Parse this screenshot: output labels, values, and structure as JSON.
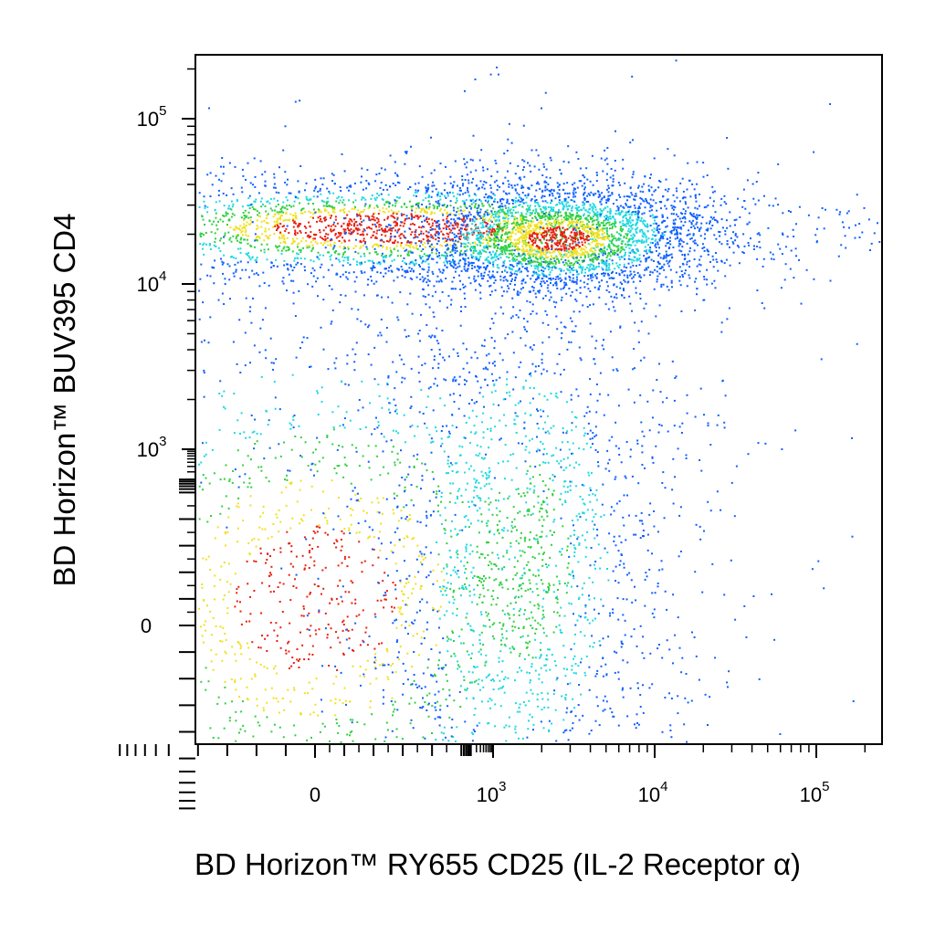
{
  "chart_data": {
    "type": "scatter",
    "title": "",
    "xlabel": "BD Horizon™ RY655 CD25 (IL-2 Receptor α)",
    "ylabel": "BD Horizon™ BUV395  CD4",
    "x_scale": "biexponential",
    "y_scale": "biexponential",
    "xlim": [
      -300,
      200000
    ],
    "ylim": [
      -350,
      300000
    ],
    "x_ticks": [
      {
        "value": 0,
        "base": "0",
        "exp": ""
      },
      {
        "value": 1000,
        "base": "10",
        "exp": "3"
      },
      {
        "value": 10000,
        "base": "10",
        "exp": "4"
      },
      {
        "value": 100000,
        "base": "10",
        "exp": "5"
      }
    ],
    "y_ticks": [
      {
        "value": 0,
        "base": "0",
        "exp": ""
      },
      {
        "value": 1000,
        "base": "10",
        "exp": "3"
      },
      {
        "value": 10000,
        "base": "10",
        "exp": "4"
      },
      {
        "value": 100000,
        "base": "10",
        "exp": "5"
      }
    ],
    "color_scale": "density: blue → cyan → green → yellow → red",
    "grid": false,
    "legend": "none",
    "populations": [
      {
        "x_center": 50,
        "y_center": 22000,
        "x_spread": 140,
        "y_spread": 0.16,
        "density": "highest"
      },
      {
        "x_center": 2500,
        "y_center": 19000,
        "x_spread": 0.45,
        "y_spread": 0.17,
        "density": "high"
      },
      {
        "x_center": 0,
        "y_center": 20,
        "x_spread": 130,
        "y_spread": 130,
        "density": "high"
      },
      {
        "x_center": 1500,
        "y_center": 50,
        "x_spread": 0.5,
        "y_spread": 130,
        "density": "medium"
      },
      {
        "x_center": 0,
        "y_center": 1500,
        "x_spread": 150,
        "y_spread": 0.4,
        "density": "sparse"
      }
    ]
  }
}
